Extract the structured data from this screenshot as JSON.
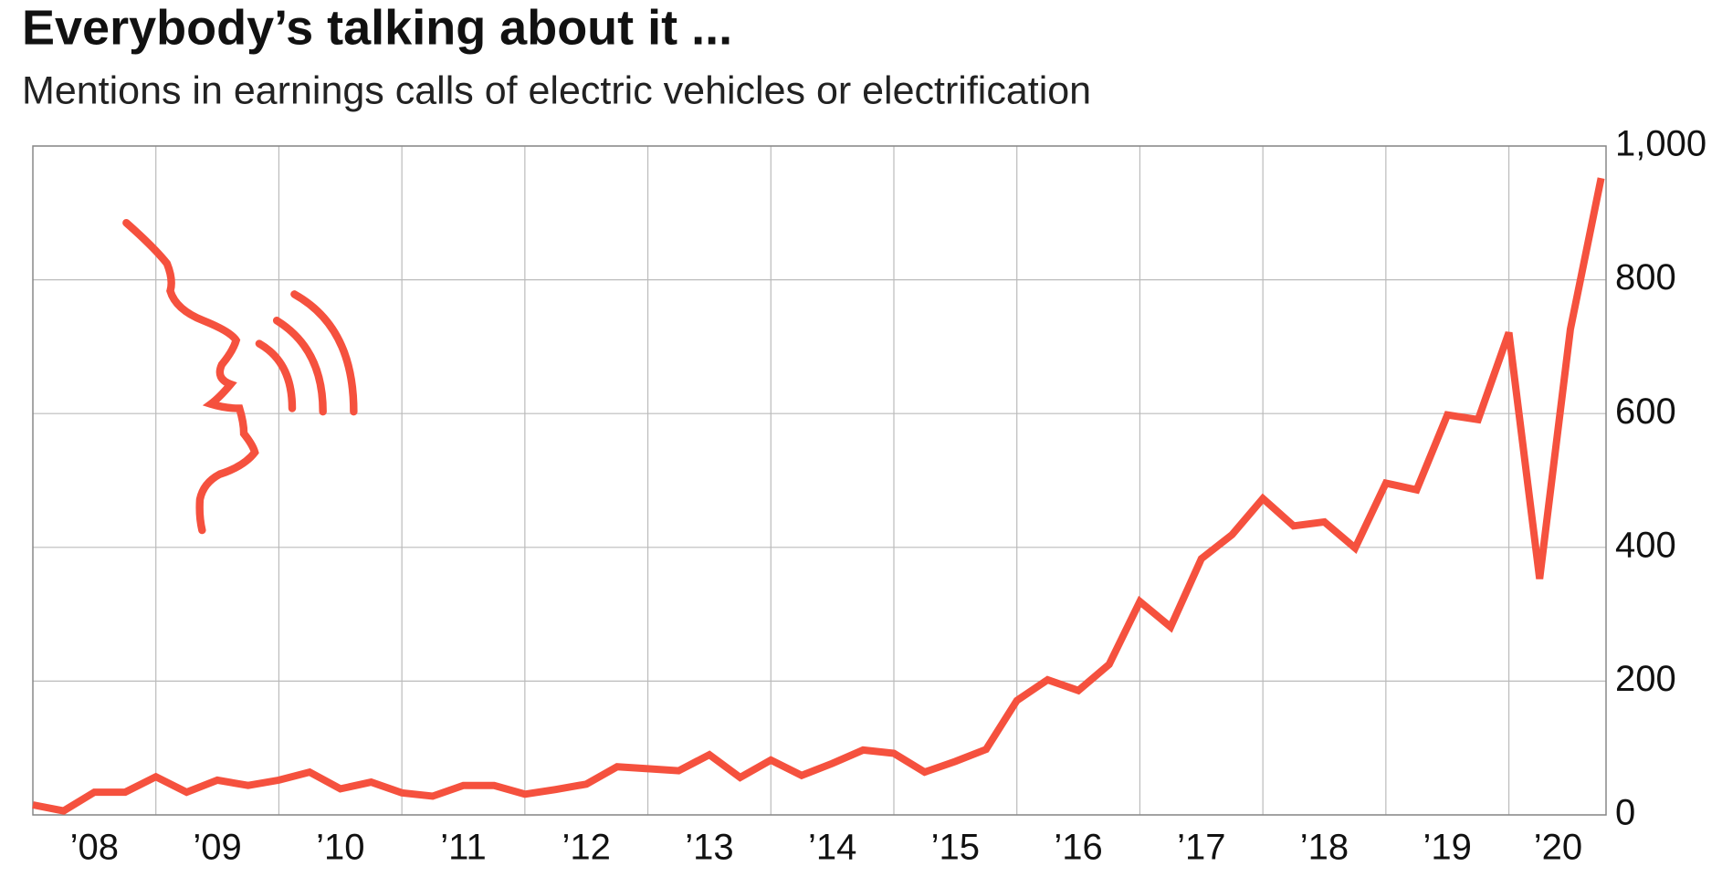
{
  "chart_data": {
    "type": "line",
    "title": "Everybody’s talking about it ...",
    "subtitle": "Mentions in earnings calls of electric vehicles or electrification",
    "x": [
      2008,
      2008.25,
      2008.5,
      2008.75,
      2009,
      2009.25,
      2009.5,
      2009.75,
      2010,
      2010.25,
      2010.5,
      2010.75,
      2011,
      2011.25,
      2011.5,
      2011.75,
      2012,
      2012.25,
      2012.5,
      2012.75,
      2013,
      2013.25,
      2013.5,
      2013.75,
      2014,
      2014.25,
      2014.5,
      2014.75,
      2015,
      2015.25,
      2015.5,
      2015.75,
      2016,
      2016.25,
      2016.5,
      2016.75,
      2017,
      2017.25,
      2017.5,
      2017.75,
      2018,
      2018.25,
      2018.5,
      2018.75,
      2019,
      2019.25,
      2019.5,
      2019.75,
      2020,
      2020.25,
      2020.5,
      2020.75
    ],
    "series": [
      {
        "color": "#f5513e",
        "values": [
          15,
          6,
          34,
          34,
          57,
          34,
          52,
          44,
          52,
          64,
          39,
          49,
          33,
          28,
          44,
          44,
          31,
          38,
          46,
          72,
          69,
          66,
          90,
          56,
          82,
          59,
          77,
          97,
          92,
          64,
          80,
          98,
          171,
          202,
          186,
          225,
          319,
          281,
          383,
          419,
          473,
          432,
          438,
          399,
          496,
          486,
          598,
          591,
          721,
          353,
          726,
          952
        ]
      }
    ],
    "xlim": [
      2008,
      2020.79
    ],
    "xticks": [
      {
        "value": 2008.5,
        "label": "’08"
      },
      {
        "value": 2009.5,
        "label": "’09"
      },
      {
        "value": 2010.5,
        "label": "’10"
      },
      {
        "value": 2011.5,
        "label": "’11"
      },
      {
        "value": 2012.5,
        "label": "’12"
      },
      {
        "value": 2013.5,
        "label": "’13"
      },
      {
        "value": 2014.5,
        "label": "’14"
      },
      {
        "value": 2015.5,
        "label": "’15"
      },
      {
        "value": 2016.5,
        "label": "’16"
      },
      {
        "value": 2017.5,
        "label": "’17"
      },
      {
        "value": 2018.5,
        "label": "’18"
      },
      {
        "value": 2019.5,
        "label": "’19"
      },
      {
        "value": 2020.4,
        "label": "’20"
      }
    ],
    "xgrid": [
      2009,
      2010,
      2011,
      2012,
      2013,
      2014,
      2015,
      2016,
      2017,
      2018,
      2019,
      2020
    ],
    "ylim": [
      0,
      1000
    ],
    "yticks": [
      0,
      200,
      400,
      600,
      800,
      {
        "value": 1000,
        "label": "1,000"
      }
    ],
    "grid": true
  }
}
